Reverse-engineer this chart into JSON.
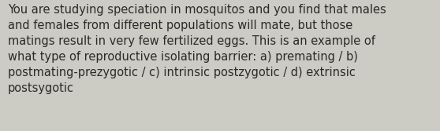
{
  "text": "You are studying speciation in mosquitos and you find that males\nand females from different populations will mate, but those\nmatings result in very few fertilized eggs. This is an example of\nwhat type of reproductive isolating barrier: a) premating / b)\npostmating-prezygotic / c) intrinsic postzygotic / d) extrinsic\npostsygotic",
  "background_color": "#ccccc4",
  "text_color": "#2a2a2a",
  "font_size": 10.5,
  "fig_width": 5.58,
  "fig_height": 1.67,
  "dpi": 100
}
